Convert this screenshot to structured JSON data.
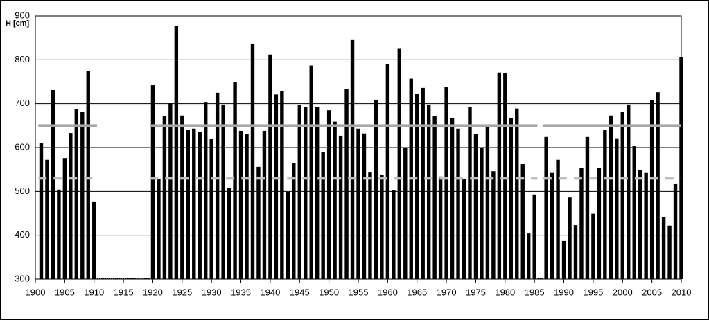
{
  "chart_data": {
    "type": "bar",
    "ylabel": "H [cm]",
    "color": "#000000",
    "x": [
      1901,
      1902,
      1903,
      1904,
      1905,
      1906,
      1907,
      1908,
      1909,
      1910,
      1911,
      1912,
      1913,
      1914,
      1915,
      1916,
      1917,
      1918,
      1919,
      1920,
      1921,
      1922,
      1923,
      1924,
      1925,
      1926,
      1927,
      1928,
      1929,
      1930,
      1931,
      1932,
      1933,
      1934,
      1935,
      1936,
      1937,
      1938,
      1939,
      1940,
      1941,
      1942,
      1943,
      1944,
      1945,
      1946,
      1947,
      1948,
      1949,
      1950,
      1951,
      1952,
      1953,
      1954,
      1955,
      1956,
      1957,
      1958,
      1959,
      1960,
      1961,
      1962,
      1963,
      1964,
      1965,
      1966,
      1967,
      1968,
      1969,
      1970,
      1971,
      1972,
      1973,
      1974,
      1975,
      1976,
      1977,
      1978,
      1979,
      1980,
      1981,
      1982,
      1983,
      1984,
      1985,
      1986,
      1987,
      1988,
      1989,
      1990,
      1991,
      1992,
      1993,
      1994,
      1995,
      1996,
      1997,
      1998,
      1999,
      2000,
      2001,
      2002,
      2003,
      2004,
      2005,
      2006,
      2007,
      2008,
      2009,
      2010
    ],
    "values": [
      611,
      572,
      731,
      504,
      576,
      633,
      687,
      682,
      774,
      477,
      null,
      null,
      null,
      null,
      null,
      null,
      null,
      null,
      null,
      742,
      529,
      671,
      701,
      877,
      673,
      641,
      643,
      635,
      704,
      619,
      725,
      698,
      507,
      749,
      638,
      630,
      837,
      556,
      638,
      812,
      721,
      728,
      499,
      564,
      697,
      692,
      787,
      693,
      589,
      685,
      659,
      627,
      733,
      845,
      643,
      632,
      543,
      709,
      537,
      791,
      502,
      825,
      600,
      757,
      722,
      736,
      698,
      671,
      534,
      738,
      668,
      643,
      529,
      692,
      630,
      599,
      646,
      546,
      771,
      769,
      667,
      689,
      562,
      404,
      493,
      null,
      624,
      542,
      572,
      387,
      486,
      423,
      553,
      624,
      449,
      553,
      641,
      673,
      621,
      682,
      698,
      603,
      548,
      542,
      708,
      726,
      441,
      422,
      518,
      806
    ],
    "hlines": [
      {
        "value": 650,
        "color": "#a6a6a6",
        "style": "solid"
      },
      {
        "value": 530,
        "color": "#bfbfbf",
        "style": "dashed"
      }
    ],
    "xlim": [
      1900,
      2010
    ],
    "xticks": [
      1900,
      1905,
      1910,
      1915,
      1920,
      1925,
      1930,
      1935,
      1940,
      1945,
      1950,
      1955,
      1960,
      1965,
      1970,
      1975,
      1980,
      1985,
      1990,
      1995,
      2000,
      2005,
      2010
    ],
    "ylim": [
      300,
      900
    ],
    "yticks": [
      300,
      400,
      500,
      600,
      700,
      800,
      900
    ],
    "grid": true
  }
}
